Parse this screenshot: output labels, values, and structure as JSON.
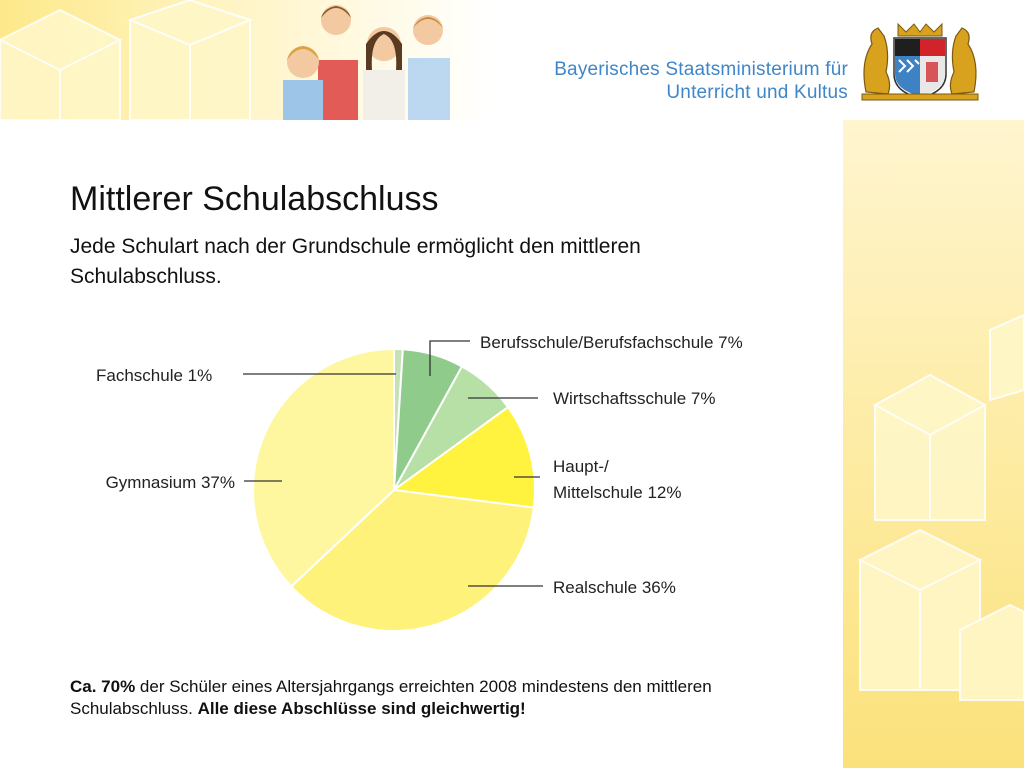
{
  "header": {
    "ministry_line1": "Bayerisches Staatsministerium für",
    "ministry_line2": "Unterricht und Kultus"
  },
  "slide": {
    "title": "Mittlerer Schulabschluss",
    "subtitle": "Jede Schulart nach der Grundschule ermöglicht den mittleren Schulabschluss."
  },
  "chart_data": {
    "type": "pie",
    "start": "top, clockwise",
    "slices": [
      {
        "label": "Fachschule 1%",
        "value": 1,
        "color": "#c3e2b6"
      },
      {
        "label": "Berufsschule/Berufsfachschule 7%",
        "value": 7,
        "color": "#8fcb8b"
      },
      {
        "label": "Wirtschaftsschule 7%",
        "value": 7,
        "color": "#b7e0a6"
      },
      {
        "label_lines": [
          "Haupt-/",
          "Mittelschule 12%"
        ],
        "value": 12,
        "color": "#fff340"
      },
      {
        "label": "Realschule 36%",
        "value": 36,
        "color": "#fff27a"
      },
      {
        "label": "Gymnasium 37%",
        "value": 37,
        "color": "#fff6a0"
      }
    ]
  },
  "footnote": {
    "part1_bold": "Ca. 70%",
    "part2": " der Schüler eines Altersjahrgangs erreichten 2008 mindestens den mittleren Schulabschluss. ",
    "part3_bold": "Alle diese Abschlüsse sind gleichwertig!"
  }
}
